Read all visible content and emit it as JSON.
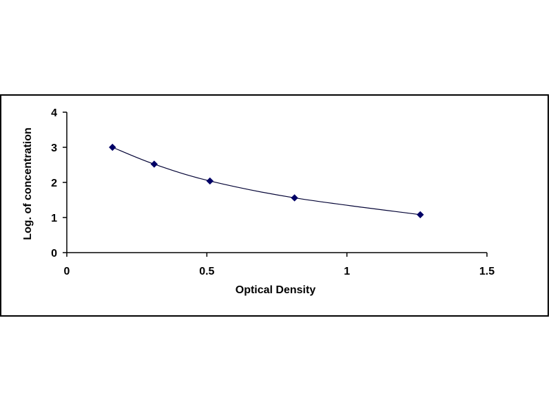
{
  "chart_data": {
    "type": "scatter",
    "title": "",
    "xlabel": "Optical Density",
    "ylabel": "Log. of concentration",
    "xlim": [
      0,
      1.5
    ],
    "ylim": [
      0,
      4
    ],
    "x_ticks": [
      "0",
      "0.5",
      "1",
      "1.5"
    ],
    "y_ticks": [
      "0",
      "1",
      "2",
      "3",
      "4"
    ],
    "grid": false,
    "series": [
      {
        "marker": "diamond",
        "line": "smooth",
        "color": "#000066",
        "points": [
          {
            "x": 0.163,
            "y": 3.0
          },
          {
            "x": 0.312,
            "y": 2.52
          },
          {
            "x": 0.511,
            "y": 2.04
          },
          {
            "x": 0.813,
            "y": 1.56
          },
          {
            "x": 1.262,
            "y": 1.08
          }
        ]
      }
    ]
  }
}
